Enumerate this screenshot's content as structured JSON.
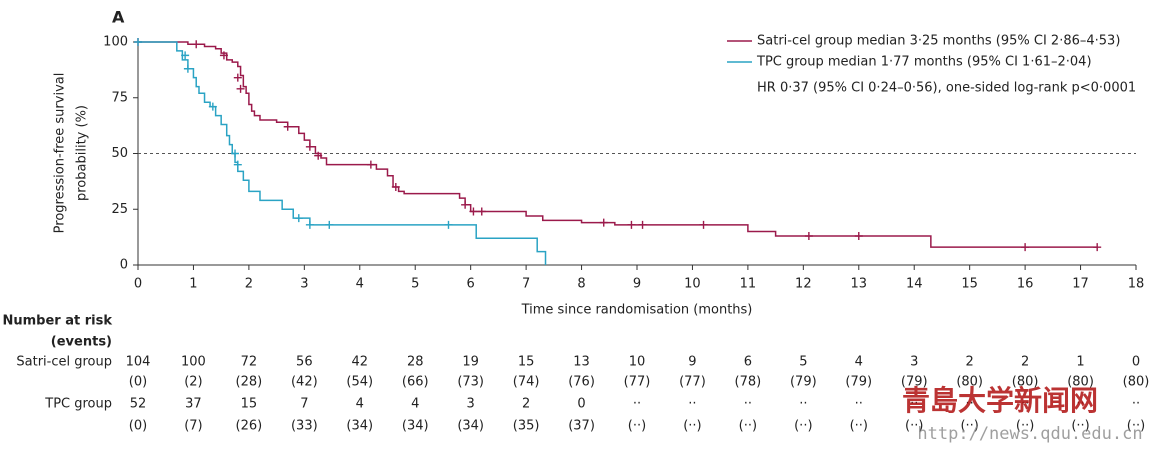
{
  "chart_data": {
    "type": "km",
    "title": "A",
    "y_label": [
      "Progression-free survival",
      "probability (%)"
    ],
    "x_label": "Time since randomisation (months)",
    "xlim": [
      0,
      18
    ],
    "ylim": [
      0,
      100
    ],
    "xticks": [
      0,
      1,
      2,
      3,
      4,
      5,
      6,
      7,
      8,
      9,
      10,
      11,
      12,
      13,
      14,
      15,
      16,
      17,
      18
    ],
    "yticks": [
      0,
      25,
      50,
      75,
      100
    ],
    "reference_line": 50,
    "annotation": "HR 0·37 (95% CI 0·24–0·56), one-sided log-rank p<0·0001",
    "series": [
      {
        "name": "Satri-cel group median 3·25 months (95% CI 2·86–4·53)",
        "color": "#9b1a4b",
        "x": [
          0,
          0.9,
          1.2,
          1.4,
          1.5,
          1.6,
          1.7,
          1.8,
          1.85,
          1.9,
          1.95,
          2.0,
          2.05,
          2.1,
          2.2,
          2.5,
          2.7,
          2.9,
          3.0,
          3.1,
          3.2,
          3.3,
          3.4,
          4.3,
          4.5,
          4.6,
          4.7,
          4.8,
          5.8,
          5.9,
          6.0,
          7.0,
          7.3,
          8.0,
          8.6,
          11.0,
          11.5,
          14.3,
          17.3
        ],
        "values": [
          100,
          99,
          98,
          97,
          95,
          92,
          91,
          89,
          85,
          80,
          77,
          72,
          69,
          67,
          65,
          64,
          62,
          59,
          56,
          53,
          50,
          48,
          45,
          43,
          40,
          35,
          33,
          32,
          30,
          27,
          24,
          22,
          20,
          19,
          18,
          15,
          13,
          8,
          8
        ],
        "censor_x": [
          0,
          1.05,
          1.55,
          1.8,
          1.85,
          2.7,
          3.1,
          3.25,
          4.2,
          4.65,
          5.9,
          6.05,
          6.2,
          8.4,
          8.9,
          9.1,
          10.2,
          12.1,
          13.0,
          16.0,
          17.3
        ],
        "censor_values": [
          100,
          99,
          94,
          84,
          79,
          62,
          53,
          49,
          45,
          35,
          27,
          24,
          24,
          19,
          18,
          18,
          18,
          13,
          13,
          8,
          8
        ]
      },
      {
        "name": "TPC group median 1·77 months (95% CI 1·61–2·04)",
        "color": "#2aa3c4",
        "x": [
          0,
          0.7,
          0.8,
          0.9,
          1.0,
          1.05,
          1.1,
          1.2,
          1.3,
          1.4,
          1.5,
          1.6,
          1.65,
          1.7,
          1.75,
          1.8,
          1.9,
          2.0,
          2.2,
          2.6,
          2.8,
          3.1,
          6.1,
          7.2,
          7.35
        ],
        "values": [
          100,
          96,
          92,
          88,
          84,
          80,
          77,
          73,
          71,
          67,
          63,
          58,
          54,
          50,
          46,
          42,
          38,
          33,
          29,
          25,
          21,
          18,
          12,
          6,
          0
        ],
        "censor_x": [
          0,
          0.85,
          0.9,
          1.35,
          1.75,
          1.8,
          2.9,
          3.1,
          3.45,
          5.6
        ],
        "censor_values": [
          100,
          94,
          88,
          71,
          50,
          45,
          21,
          18,
          18,
          18
        ]
      }
    ],
    "risk_table": {
      "title": [
        "Number at risk",
        "(events)"
      ],
      "rows": [
        {
          "label": "Satri-cel group",
          "counts": [
            104,
            100,
            72,
            56,
            42,
            28,
            19,
            15,
            13,
            10,
            9,
            6,
            5,
            4,
            3,
            2,
            2,
            1,
            0
          ],
          "events": [
            "(0)",
            "(2)",
            "(28)",
            "(42)",
            "(54)",
            "(66)",
            "(73)",
            "(74)",
            "(76)",
            "(77)",
            "(77)",
            "(78)",
            "(79)",
            "(79)",
            "(79)",
            "(80)",
            "(80)",
            "(80)",
            "(80)"
          ]
        },
        {
          "label": "TPC group",
          "counts": [
            52,
            37,
            15,
            7,
            4,
            4,
            3,
            2,
            0,
            "··",
            "··",
            "··",
            "··",
            "··",
            "··",
            "··",
            "··",
            "··",
            "··"
          ],
          "events": [
            "(0)",
            "(7)",
            "(26)",
            "(33)",
            "(34)",
            "(34)",
            "(34)",
            "(35)",
            "(37)",
            "(··)",
            "(··)",
            "(··)",
            "(··)",
            "(··)",
            "(··)",
            "(··)",
            "(··)",
            "(··)",
            "(··)"
          ]
        }
      ]
    }
  },
  "watermark": {
    "name": "青島大学新闻网",
    "url": "http://news.qdu.edu.cn"
  }
}
